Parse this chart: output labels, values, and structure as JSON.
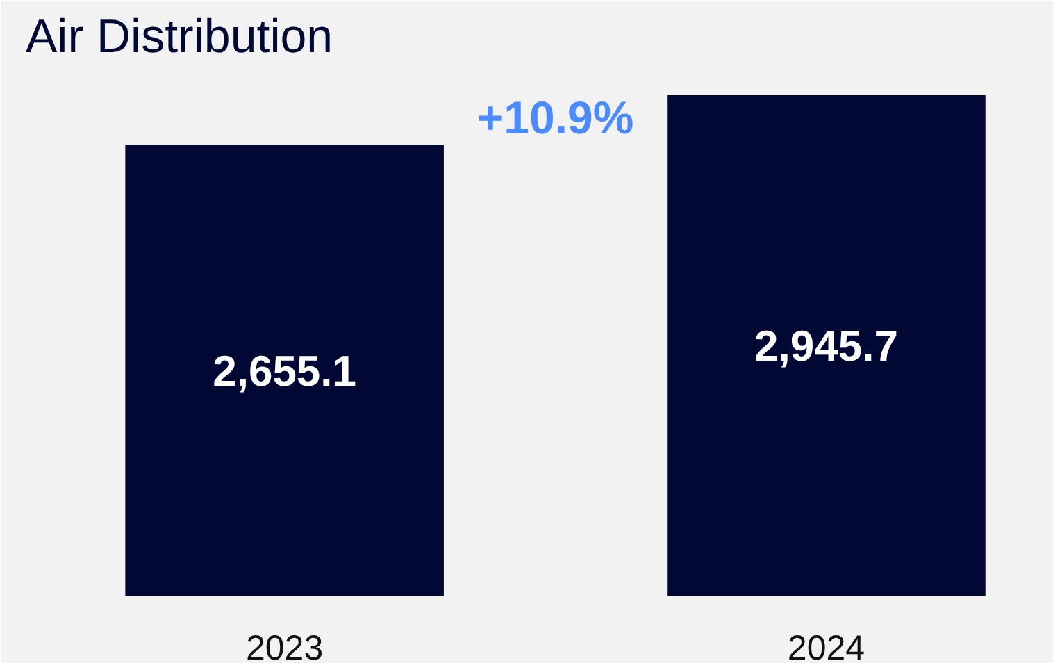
{
  "chart_data": {
    "type": "bar",
    "title": "Air Distribution",
    "categories": [
      "2023",
      "2024"
    ],
    "values": [
      2655.1,
      2945.7
    ],
    "value_labels": [
      "2,655.1",
      "2,945.7"
    ],
    "color": "#000833",
    "annotations": [
      "+10.9%"
    ]
  }
}
